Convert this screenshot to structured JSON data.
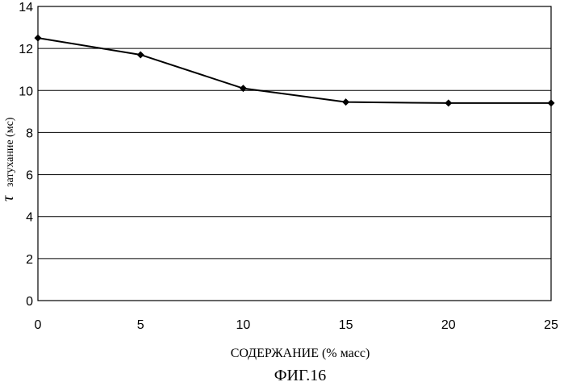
{
  "chart_data": {
    "type": "line",
    "x": [
      0,
      5,
      10,
      15,
      20,
      25
    ],
    "series": [
      {
        "values": [
          12.5,
          11.7,
          10.1,
          9.45,
          9.4,
          9.4
        ]
      }
    ],
    "xlabel": "СОДЕРЖАНИЕ (% масс)",
    "ylabel_symbol": "τ",
    "ylabel": "затухание (мс)",
    "xlim": [
      0,
      25
    ],
    "ylim": [
      0,
      14
    ],
    "x_ticks": [
      "0",
      "5",
      "10",
      "15",
      "20",
      "25"
    ],
    "y_ticks": [
      "0",
      "2",
      "4",
      "6",
      "8",
      "10",
      "12",
      "14"
    ],
    "grid": "horizontal",
    "marker": "diamond",
    "colors": {
      "line": "#000000",
      "grid": "#000000"
    }
  },
  "caption": "ФИГ.16"
}
